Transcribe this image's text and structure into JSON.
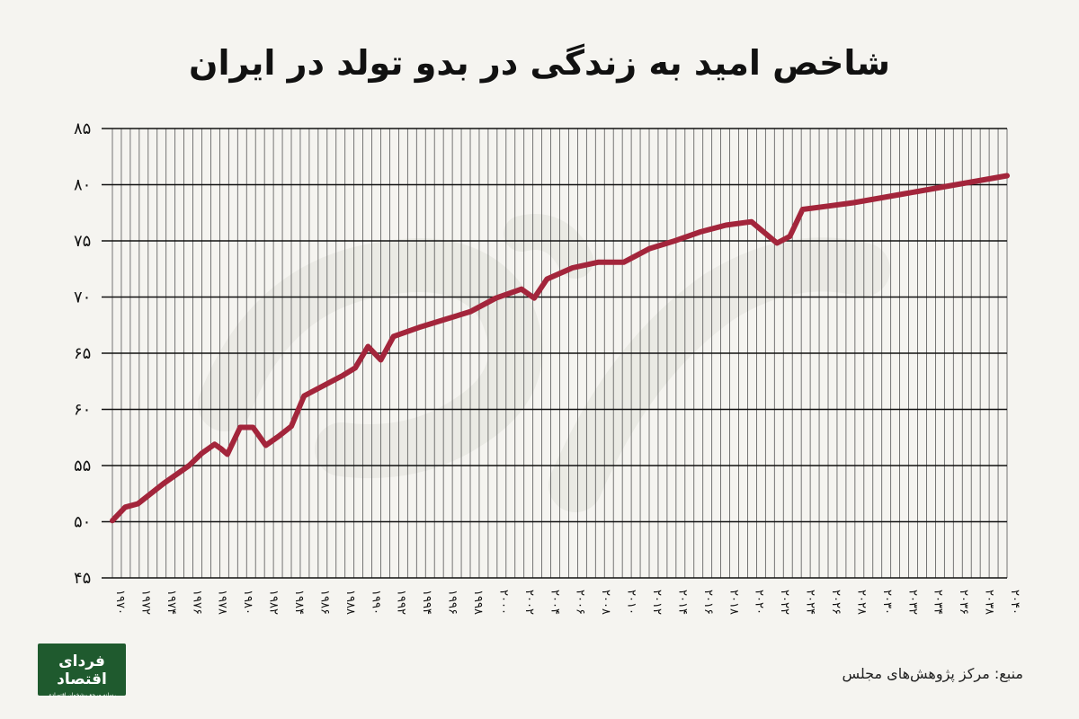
{
  "chart_data": {
    "type": "line",
    "title": "شاخص امید به زندگی در بدو تولد در ایران",
    "ylim": [
      45,
      85
    ],
    "y_ticks": [
      "۴۵",
      "۵۰",
      "۵۵",
      "۶۰",
      "۶۵",
      "۷۰",
      "۷۵",
      "۸۰",
      "۸۵"
    ],
    "xlim": [
      1970,
      2040
    ],
    "x_ticks": [
      "۱۹۷۰",
      "۱۹۷۲",
      "۱۹۷۴",
      "۱۹۷۶",
      "۱۹۷۸",
      "۱۹۸۰",
      "۱۹۸۲",
      "۱۹۸۴",
      "۱۹۸۶",
      "۱۹۸۸",
      "۱۹۹۰",
      "۱۹۹۲",
      "۱۹۹۴",
      "۱۹۹۶",
      "۱۹۹۸",
      "۲۰۰۰",
      "۲۰۰۲",
      "۲۰۰۴",
      "۲۰۰۶",
      "۲۰۰۸",
      "۲۰۱۰",
      "۲۰۱۲",
      "۲۰۱۴",
      "۲۰۱۶",
      "۲۰۱۸",
      "۲۰۲۰",
      "۲۰۲۲",
      "۲۰۲۴",
      "۲۰۲۶",
      "۲۰۲۸",
      "۲۰۳۰",
      "۲۰۳۲",
      "۲۰۳۴",
      "۲۰۳۶",
      "۲۰۳۸",
      "۲۰۴۰"
    ],
    "grid": true,
    "line_color": "#a3253b",
    "x": [
      1970,
      1971,
      1972,
      1974,
      1976,
      1977,
      1978,
      1978.5,
      1979,
      1980,
      1981,
      1982,
      1983,
      1984,
      1985,
      1986,
      1987,
      1988,
      1989,
      1990,
      1991,
      1992,
      1994,
      1996,
      1998,
      2000,
      2002,
      2003,
      2004,
      2006,
      2008,
      2010,
      2012,
      2014,
      2016,
      2018,
      2020,
      2022,
      2023,
      2024,
      2026,
      2028,
      2030,
      2032,
      2034,
      2036,
      2038,
      2040
    ],
    "y": [
      50.1,
      51.3,
      51.6,
      53.4,
      55.0,
      56.1,
      56.9,
      56.5,
      56.0,
      58.4,
      58.4,
      56.8,
      57.6,
      58.5,
      61.2,
      61.8,
      62.4,
      63.0,
      63.7,
      65.6,
      64.4,
      66.5,
      67.3,
      68.0,
      68.7,
      69.9,
      70.7,
      69.9,
      71.6,
      72.6,
      73.1,
      73.1,
      74.3,
      75.0,
      75.8,
      76.4,
      76.7,
      74.8,
      75.4,
      77.8,
      78.1,
      78.4,
      78.8,
      79.2,
      79.6,
      80.0,
      80.4,
      80.8
    ]
  },
  "source_text": "منبع: مرکز پژوهش‌های مجلس",
  "logo": {
    "name": "فردای اقتصاد",
    "tagline": "رسانه مرجع پیشخوان اقتصادی"
  }
}
